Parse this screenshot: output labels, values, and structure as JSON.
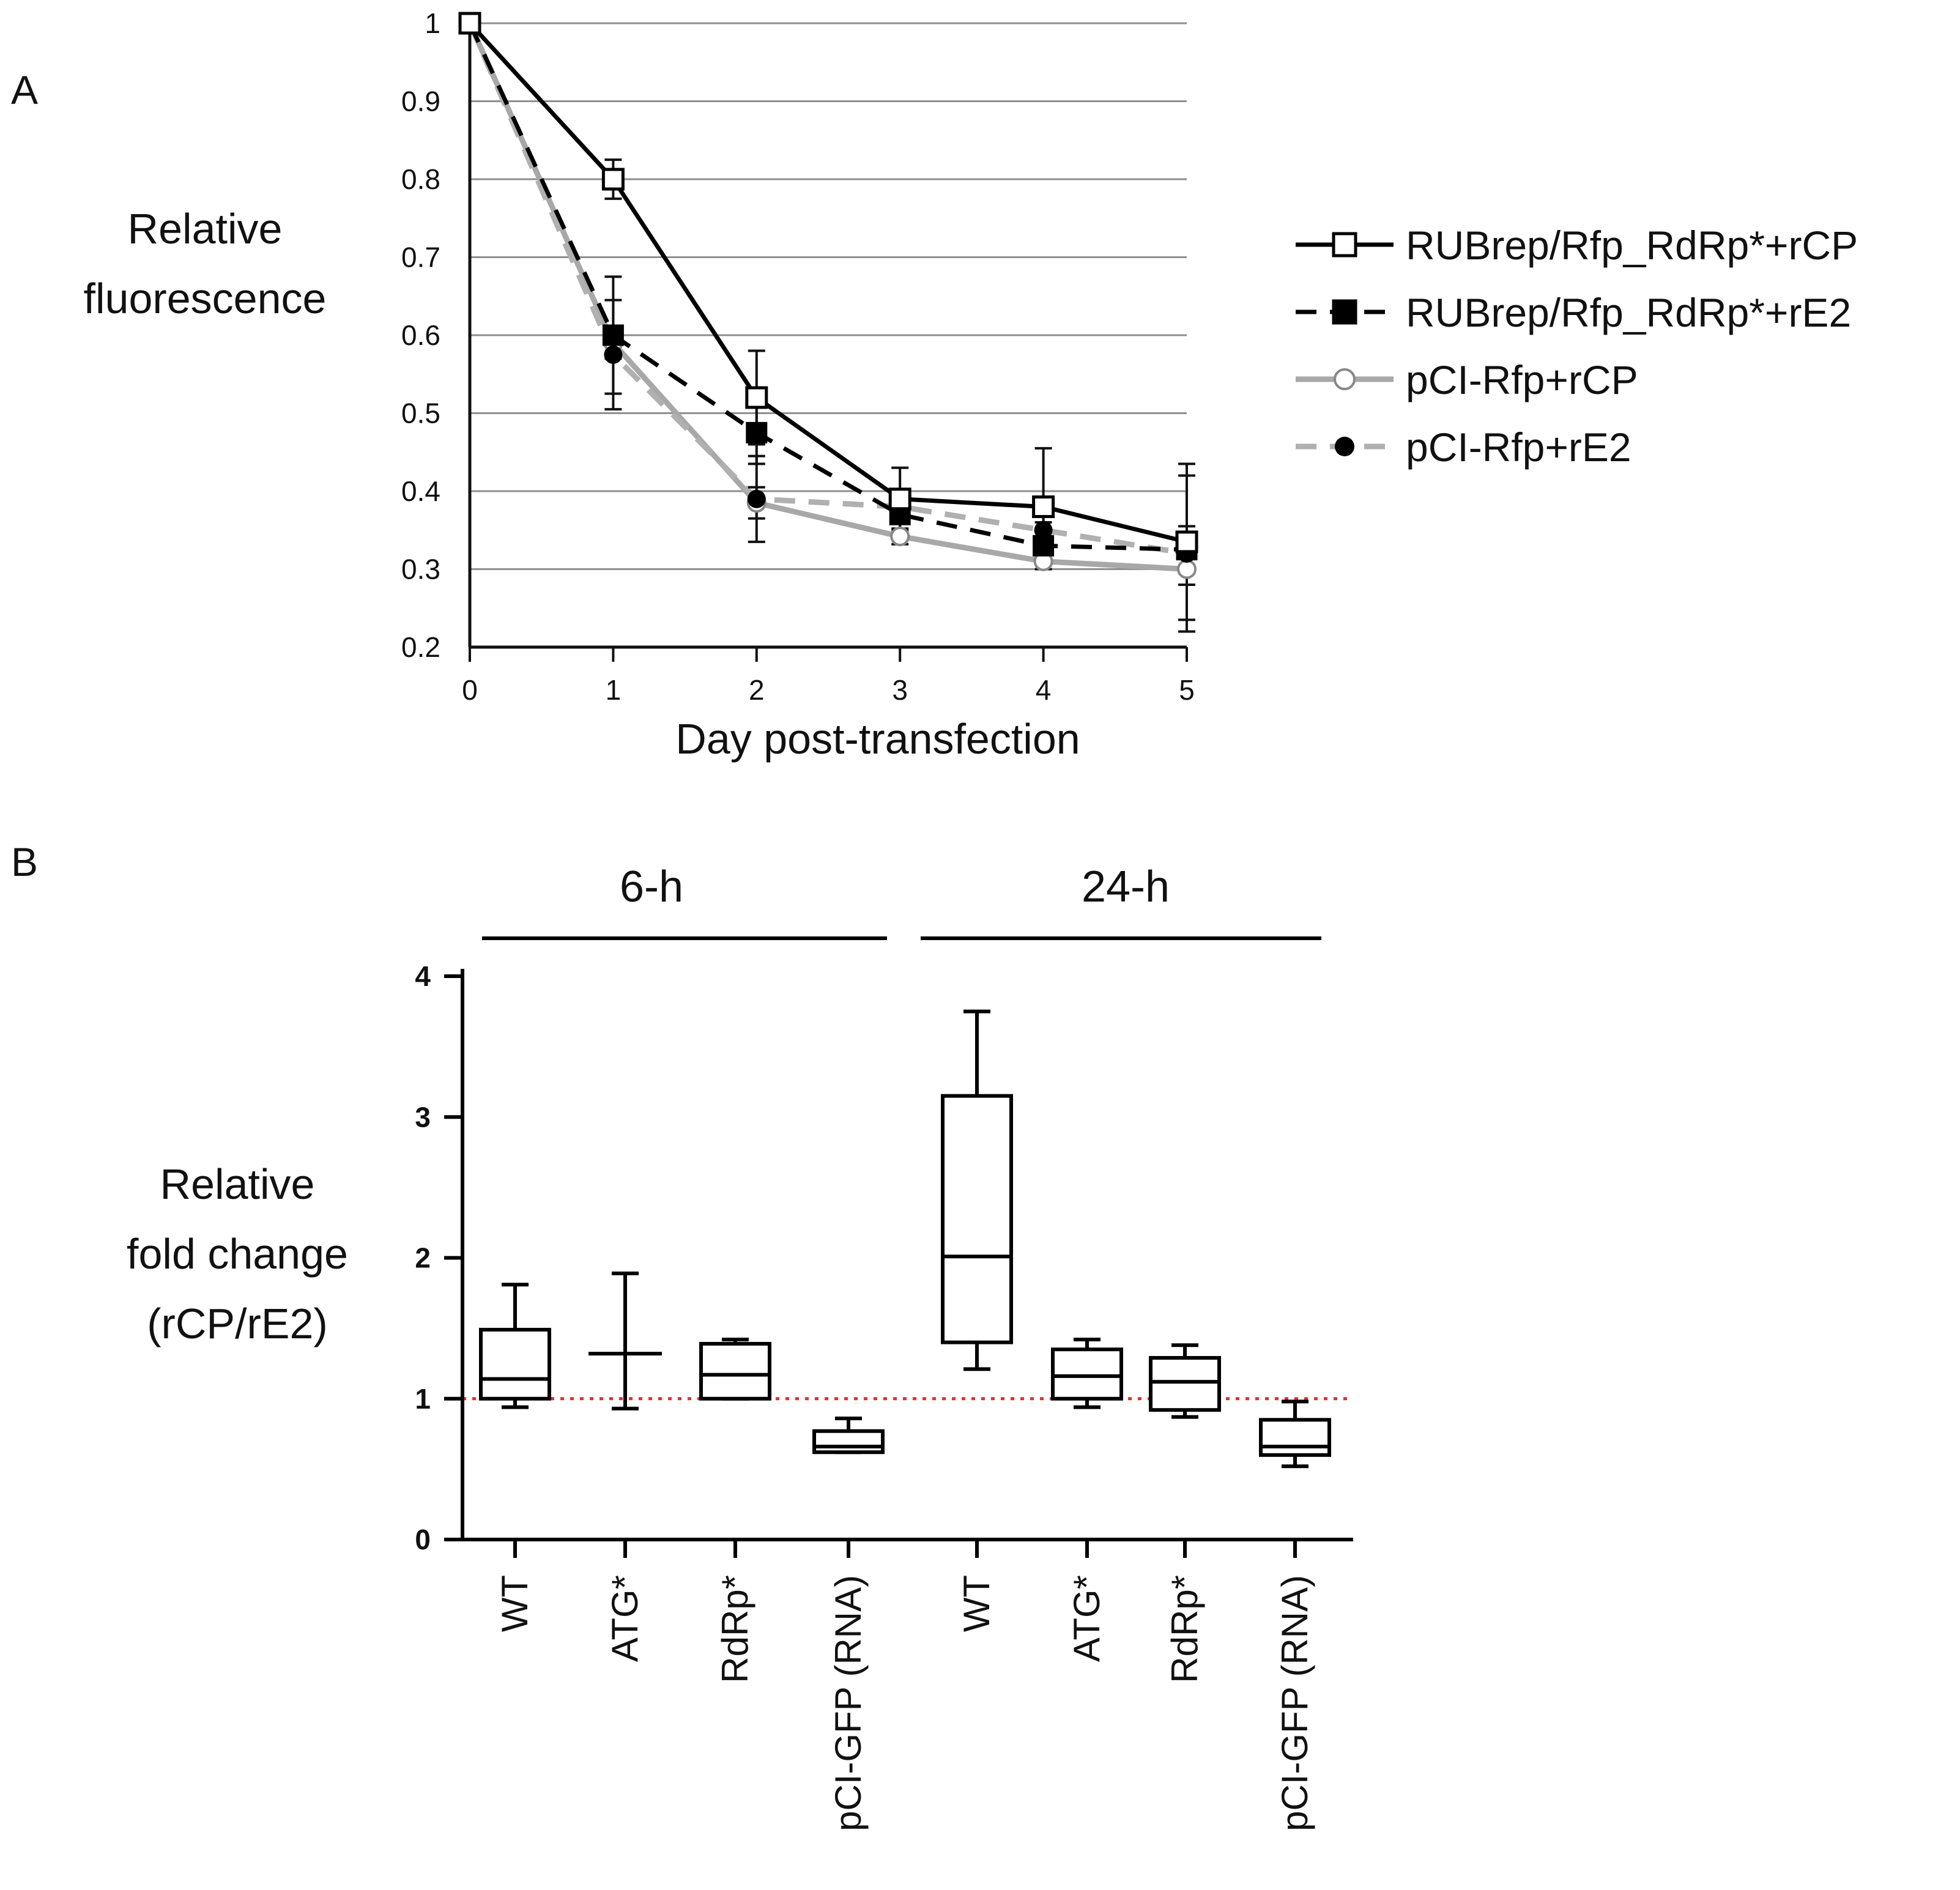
{
  "panel_a_label": "A",
  "panel_b_label": "B",
  "chart_data": [
    {
      "type": "line",
      "panel": "A",
      "ylabel_lines": [
        "Relative",
        "fluorescence"
      ],
      "xlabel": "Day post-transfection",
      "x": [
        0,
        1,
        2,
        3,
        4,
        5
      ],
      "xlim": [
        0,
        5
      ],
      "ylim": [
        0.2,
        1
      ],
      "yticks": [
        0.2,
        0.3,
        0.4,
        0.5,
        0.6,
        0.7,
        0.8,
        0.9,
        1
      ],
      "ytick_labels": [
        "0.2",
        "0.3",
        "0.4",
        "0.5",
        "0.6",
        "0.7",
        "0.8",
        "0.9",
        "1"
      ],
      "xtick_labels": [
        "0",
        "1",
        "2",
        "3",
        "4",
        "5"
      ],
      "grid": true,
      "legend_position": "right",
      "series": [
        {
          "name": "RUBrep/Rfp_RdRp*+rCP",
          "values": [
            1.0,
            0.8,
            0.52,
            0.39,
            0.38,
            0.335
          ],
          "errors": [
            0,
            0.025,
            0.06,
            0.04,
            0.075,
            0.1
          ],
          "color": "#000000",
          "dash": "solid",
          "marker": "open-square"
        },
        {
          "name": "RUBrep/Rfp_RdRp*+rE2",
          "values": [
            1.0,
            0.6,
            0.475,
            0.37,
            0.33,
            0.325
          ],
          "errors": [
            0,
            0.075,
            0.04,
            0.03,
            0.03,
            0.03
          ],
          "color": "#000000",
          "dash": "dashed",
          "marker": "filled-square"
        },
        {
          "name": "pCI-Rfp+rCP",
          "values": [
            1.0,
            0.59,
            0.385,
            0.342,
            0.31,
            0.3
          ],
          "errors": [
            0,
            0.02,
            0.02,
            0.01,
            0.01,
            0.02
          ],
          "color": "#a8a8a8",
          "dash": "solid",
          "marker": "open-circle"
        },
        {
          "name": "pCI-Rfp+rE2",
          "values": [
            1.0,
            0.575,
            0.39,
            0.38,
            0.35,
            0.32
          ],
          "errors": [
            0,
            0.07,
            0.055,
            0.02,
            0.02,
            0.1
          ],
          "color": "#b0b0b0",
          "dash": "dashed",
          "marker": "filled-circle"
        }
      ]
    },
    {
      "type": "box",
      "panel": "B",
      "ylabel_lines": [
        "Relative",
        "fold change",
        "(rCP/rE2)"
      ],
      "ylim": [
        0,
        4
      ],
      "yticks": [
        0,
        1,
        2,
        3,
        4
      ],
      "ytick_labels": [
        "0",
        "1",
        "2",
        "3",
        "4"
      ],
      "reference_line": 1,
      "reference_color": "#e0302a",
      "groups": [
        "6-h",
        "24-h"
      ],
      "categories": [
        "WT",
        "ATG*",
        "RdRp*",
        "pCI-GFP (RNA)",
        "WT",
        "ATG*",
        "RdRp*",
        "pCI-GFP (RNA)"
      ],
      "boxes": [
        {
          "min": 0.94,
          "q1": 1.0,
          "median": 1.14,
          "q3": 1.49,
          "max": 1.81
        },
        {
          "min": 0.93,
          "q1": 1.32,
          "median": 1.32,
          "q3": 1.32,
          "max": 1.89
        },
        {
          "min": 1.0,
          "q1": 1.0,
          "median": 1.17,
          "q3": 1.39,
          "max": 1.42
        },
        {
          "min": 0.62,
          "q1": 0.62,
          "median": 0.66,
          "q3": 0.77,
          "max": 0.86
        },
        {
          "min": 1.21,
          "q1": 1.4,
          "median": 2.01,
          "q3": 3.15,
          "max": 3.75
        },
        {
          "min": 0.94,
          "q1": 1.0,
          "median": 1.16,
          "q3": 1.35,
          "max": 1.42
        },
        {
          "min": 0.87,
          "q1": 0.92,
          "median": 1.12,
          "q3": 1.29,
          "max": 1.38
        },
        {
          "min": 0.52,
          "q1": 0.6,
          "median": 0.66,
          "q3": 0.85,
          "max": 0.98
        }
      ]
    }
  ]
}
